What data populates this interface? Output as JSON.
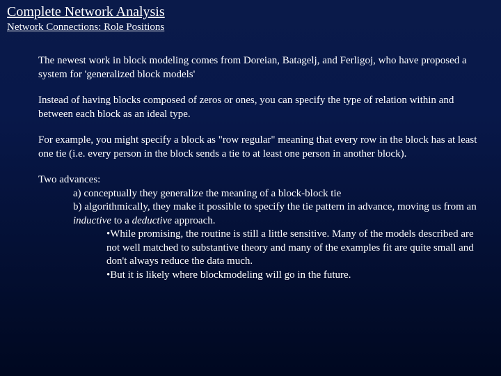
{
  "title": "Complete Network Analysis",
  "subtitle": "Network Connections: Role Positions",
  "para1": "The newest work in block modeling comes from Doreian, Batagelj, and Ferligoj, who have proposed a system for 'generalized block models'",
  "para2": "Instead of having blocks composed of zeros or ones, you can specify the type of relation within and between each block as an ideal type.",
  "para3": "For example, you might specify a block as \"row regular\" meaning that every row in the block has at least one tie (i.e. every person in the block sends a tie to at least one person in another block).",
  "advances": {
    "intro": "Two advances:",
    "item_a": "a) conceptually they generalize the meaning of a block-block tie",
    "item_b_pre": "b) algorithmically, they make it possible to specify the tie pattern in advance, moving us from an ",
    "item_b_ind": "inductive",
    "item_b_mid": " to a ",
    "item_b_ded": "deductive",
    "item_b_post": " approach.",
    "bullet1": "•While promising, the routine is still a little sensitive. Many of the models described are not well matched to substantive theory and many of the examples fit are quite small and don't always reduce the data much.",
    "bullet2": "•But it is likely where blockmodeling will go in the future."
  },
  "colors": {
    "bg_top": "#0a1a4a",
    "bg_bottom": "#000820",
    "text": "#ffffff"
  }
}
